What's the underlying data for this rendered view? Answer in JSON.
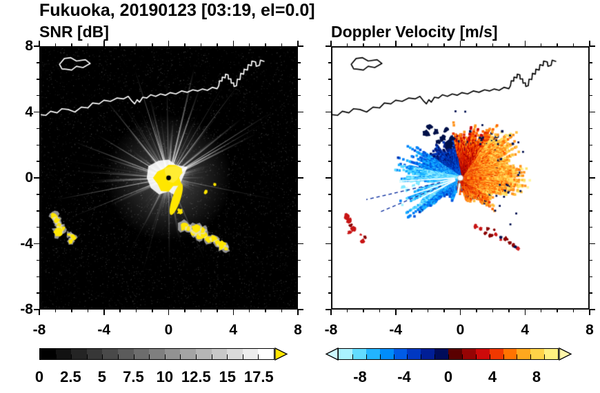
{
  "title": "Fukuoka, 20190123 [03:19, el=0.0]",
  "panels": {
    "snr": {
      "title": "SNR [dB]"
    },
    "velocity": {
      "title": "Doppler Velocity [m/s]"
    }
  },
  "axes": {
    "xlim": [
      -8,
      8
    ],
    "ylim": [
      -8,
      8
    ],
    "major_ticks": [
      -8,
      -4,
      0,
      4,
      8
    ],
    "minor_tick_step": 1,
    "xtick_labels": [
      "-8",
      "-4",
      "0",
      "4",
      "8"
    ],
    "yticks": [
      8,
      4,
      0,
      -4,
      -8
    ],
    "ytick_labels": [
      "8",
      "4",
      "0",
      "-4",
      "-8"
    ]
  },
  "colorbars": {
    "snr": {
      "range": [
        0,
        18.75
      ],
      "tick_values": [
        0,
        2.5,
        5,
        7.5,
        10,
        12.5,
        15,
        17.5
      ],
      "tick_labels": [
        "0",
        "2.5",
        "5",
        "7.5",
        "10",
        "12.5",
        "15",
        "17.5"
      ],
      "segments": [
        "#000000",
        "#121212",
        "#242424",
        "#373737",
        "#494949",
        "#5b5b5b",
        "#6d6d6d",
        "#7f7f7f",
        "#929292",
        "#a4a4a4",
        "#b6b6b6",
        "#c8c8c8",
        "#dbdbdb",
        "#ededed",
        "#ffffff"
      ],
      "overflow_arrow_color": "#ffe600"
    },
    "velocity": {
      "range": [
        -10,
        10
      ],
      "tick_values": [
        -8,
        -4,
        0,
        4,
        8
      ],
      "tick_labels": [
        "-8",
        "-4",
        "0",
        "4",
        "8"
      ],
      "segments": [
        "#aaf2ff",
        "#62dcff",
        "#22b4ff",
        "#008cfa",
        "#005ce6",
        "#0038c2",
        "#001e96",
        "#000c5a",
        "#5a0000",
        "#960404",
        "#cd0a0a",
        "#f03800",
        "#ff7300",
        "#ffa81e",
        "#ffd348",
        "#fff080"
      ],
      "underflow_arrow_color": "#cdf8ff",
      "overflow_arrow_color": "#fff6aa"
    }
  },
  "palettes": {
    "warm": [
      "#6e0000",
      "#9b0000",
      "#c80000",
      "#e63000",
      "#ff6400",
      "#ff941e",
      "#ffbe3c",
      "#ffe164",
      "#fff3a0"
    ],
    "cool": [
      "#a0f2ff",
      "#58d8ff",
      "#18b0ff",
      "#0080f8",
      "#0054e0",
      "#0034b4",
      "#001e88",
      "#000e54"
    ],
    "snr_overflow": "#ffe600"
  },
  "echo_features": {
    "radar_center": [
      0,
      0
    ],
    "west_arc": [
      [
        -7.05,
        -2.35
      ],
      [
        -6.9,
        -2.6
      ],
      [
        -6.78,
        -2.9
      ],
      [
        -6.62,
        -3.1
      ],
      [
        -6.85,
        -3.3
      ]
    ],
    "west_arc2": [
      [
        -6.15,
        -3.45
      ],
      [
        -5.9,
        -3.6
      ],
      [
        -6.05,
        -3.85
      ]
    ],
    "south_chain": [
      [
        0.95,
        -2.95
      ],
      [
        1.25,
        -3.1
      ],
      [
        1.55,
        -3.35
      ],
      [
        1.9,
        -3.5
      ],
      [
        2.2,
        -3.45
      ],
      [
        2.5,
        -3.75
      ],
      [
        2.8,
        -3.7
      ],
      [
        3.05,
        -3.95
      ],
      [
        3.3,
        -4.1
      ],
      [
        3.55,
        -4.3
      ],
      [
        2.1,
        -3.15
      ],
      [
        1.7,
        -3.1
      ]
    ],
    "nw_dark_patches": [
      [
        -0.7,
        2.0
      ],
      [
        -1.1,
        2.4
      ],
      [
        -1.5,
        2.8
      ],
      [
        -1.9,
        3.1
      ],
      [
        -0.9,
        2.9
      ],
      [
        -1.4,
        2.2
      ],
      [
        -2.1,
        2.7
      ],
      [
        -0.5,
        2.4
      ]
    ],
    "bright_cyan_cells": [
      [
        -2.9,
        -0.5
      ],
      [
        -3.3,
        -0.7
      ],
      [
        -2.6,
        -0.3
      ],
      [
        -3.0,
        -0.15
      ],
      [
        -3.55,
        -0.55
      ]
    ]
  },
  "coastline": {
    "paths": [
      {
        "closed": false,
        "pts": [
          [
            -8,
            3.85
          ],
          [
            -7.6,
            3.8
          ],
          [
            -7.3,
            4.05
          ],
          [
            -6.9,
            3.95
          ],
          [
            -6.6,
            4.2
          ],
          [
            -6.2,
            4.15
          ],
          [
            -5.8,
            4.0
          ],
          [
            -5.4,
            4.3
          ],
          [
            -5.0,
            4.25
          ],
          [
            -4.7,
            4.55
          ],
          [
            -4.3,
            4.5
          ],
          [
            -4.0,
            4.72
          ],
          [
            -3.6,
            4.65
          ],
          [
            -3.2,
            4.85
          ],
          [
            -2.8,
            4.8
          ],
          [
            -2.5,
            4.95
          ],
          [
            -2.3,
            4.7
          ],
          [
            -2.1,
            4.5
          ],
          [
            -1.95,
            4.75
          ],
          [
            -1.8,
            4.6
          ],
          [
            -1.6,
            4.9
          ],
          [
            -1.35,
            4.85
          ],
          [
            -1.1,
            5.05
          ],
          [
            -0.8,
            4.95
          ],
          [
            -0.5,
            5.1
          ],
          [
            -0.2,
            5.02
          ],
          [
            0.1,
            5.18
          ],
          [
            0.45,
            5.1
          ],
          [
            0.8,
            5.28
          ],
          [
            1.15,
            5.2
          ],
          [
            1.5,
            5.35
          ],
          [
            1.8,
            5.28
          ],
          [
            2.1,
            5.4
          ],
          [
            2.4,
            5.32
          ],
          [
            2.7,
            5.5
          ],
          [
            3.0,
            5.42
          ],
          [
            3.1,
            5.6
          ],
          [
            3.15,
            5.9
          ],
          [
            3.3,
            5.88
          ],
          [
            3.32,
            6.12
          ],
          [
            3.5,
            6.08
          ],
          [
            3.52,
            6.3
          ],
          [
            3.68,
            6.26
          ],
          [
            3.7,
            6.0
          ],
          [
            3.85,
            6.02
          ],
          [
            3.88,
            5.75
          ],
          [
            4.02,
            5.78
          ],
          [
            4.05,
            5.55
          ],
          [
            4.2,
            5.6
          ],
          [
            4.25,
            6.0
          ],
          [
            4.42,
            5.97
          ],
          [
            4.46,
            6.35
          ],
          [
            4.64,
            6.3
          ],
          [
            4.67,
            6.6
          ],
          [
            4.88,
            6.55
          ],
          [
            4.92,
            6.88
          ],
          [
            5.12,
            6.82
          ],
          [
            5.15,
            7.1
          ],
          [
            5.38,
            7.04
          ],
          [
            5.42,
            6.78
          ],
          [
            5.62,
            6.84
          ],
          [
            5.68,
            7.15
          ],
          [
            5.9,
            7.08
          ]
        ]
      },
      {
        "closed": true,
        "pts": [
          [
            -6.75,
            6.9
          ],
          [
            -6.45,
            7.25
          ],
          [
            -6.05,
            7.3
          ],
          [
            -5.7,
            7.1
          ],
          [
            -5.15,
            7.18
          ],
          [
            -4.85,
            6.95
          ],
          [
            -5.3,
            6.7
          ],
          [
            -5.7,
            6.78
          ],
          [
            -6.0,
            6.55
          ],
          [
            -6.35,
            6.6
          ],
          [
            -6.6,
            6.62
          ]
        ]
      }
    ]
  },
  "chart_data": [
    {
      "type": "heatmap",
      "title": "SNR [dB]",
      "xlim": [
        -8,
        8
      ],
      "ylim": [
        -8,
        8
      ],
      "xticks": [
        -8,
        -4,
        0,
        4,
        8
      ],
      "yticks": [
        -8,
        -4,
        0,
        4,
        8
      ],
      "background": "#000000",
      "coastline_color": "#ffffff",
      "colorbar": {
        "range": [
          0,
          18.75
        ],
        "ticks": [
          0,
          2.5,
          5,
          7.5,
          10,
          12.5,
          15,
          17.5
        ],
        "colormap": "black-to-white grayscale with yellow overflow arrow"
      },
      "features": [
        "saturated yellow (>17.5 dB) echo core within ~1 unit of the radar at (0,0) with a spur toward (1,-2)",
        "white radial interference spokes out to ~7 units, brightest toward N through E",
        "dark wedge with few spokes toward the SE (azimuth ~300 deg)",
        "yellow ground-clutter arcs near (-7,-2.8), (-6,-3.6) and a chain from (1,-3) to (3.6,-4.3)",
        "white coastline of Hakata Bay across the top of the panel"
      ]
    },
    {
      "type": "heatmap",
      "title": "Doppler Velocity [m/s]",
      "xlim": [
        -8,
        8
      ],
      "ylim": [
        -8,
        8
      ],
      "xticks": [
        -8,
        -4,
        0,
        4,
        8
      ],
      "yticks": [
        -8,
        -4,
        0,
        4,
        8
      ],
      "background": "#ffffff",
      "coastline_color": "#000000",
      "colorbar": {
        "range": [
          -10,
          10
        ],
        "ticks": [
          -8,
          -4,
          0,
          4,
          8
        ],
        "colormap": "cyan-blue-navy (negative) to maroon-red-orange-yellow (positive), diverging at 0"
      },
      "features": [
        "positive (orange-yellow) velocities east and northeast of the radar out to ~4.5 units",
        "negative (cyan-blue) wedge west-southwest of the radar out to ~4 units",
        "dark navy patches northwest of the core near (-1.5,2.5) and navy speckles along echo edges",
        "thin white no-data spokes radiating from the radar",
        "red ground-clutter arcs near (-7,-2.8) and from (1,-3) to (3.6,-4.3)",
        "black coastline across the top of the panel"
      ]
    }
  ]
}
